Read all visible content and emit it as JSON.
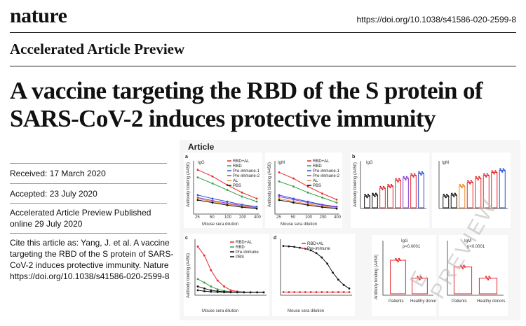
{
  "header": {
    "journal": "nature",
    "doi": "https://doi.org/10.1038/s41586-020-2599-8",
    "section": "Accelerated Article Preview"
  },
  "title": "A vaccine targeting the RBD of the S protein of SARS-CoV-2 induces protective immunity",
  "meta": {
    "received": "Received: 17 March 2020",
    "accepted": "Accepted: 23 July 2020",
    "published": "Accelerated Article Preview Published online 29 July 2020",
    "cite": "Cite this article as: Yang, J. et al. A vaccine targeting the RBD of the S protein of SARS-CoV-2 induces protective immunity. Nature https://doi.org/10.1038/s41586-020-2599-8"
  },
  "figure": {
    "label": "Article",
    "watermark": "E PREVIEW",
    "panels": {
      "a_igg": {
        "panel": "a",
        "title": "IgG",
        "ylabel": "Antibody binding (A450)",
        "xlabel": "Mouse sera dilution",
        "x_ticks": [
          "25",
          "50",
          "100",
          "200",
          "400"
        ]
      },
      "a_igm": {
        "panel": "",
        "title": "IgM",
        "ylabel": "Antibody binding (A450)",
        "xlabel": "Mouse sera dilution",
        "x_ticks": [
          "25",
          "50",
          "100",
          "200",
          "400"
        ]
      },
      "b_igg": {
        "panel": "b",
        "title": "IgG",
        "ylabel": "Antibody binding (A450)"
      },
      "b_igm": {
        "panel": "",
        "title": "IgM",
        "ylabel": ""
      },
      "c": {
        "panel": "c",
        "ylabel": "Antibody binding (A450)",
        "xlabel": "Mouse sera dilution"
      },
      "d": {
        "panel": "d",
        "xlabel": "Mouse sera dilution"
      },
      "e_igg": {
        "panel": "",
        "title": "IgG",
        "ylabel": "Antibody binding (A450)",
        "categories": [
          "Patients",
          "Healthy donors"
        ],
        "sig": "p<0.0001"
      },
      "e_igm": {
        "panel": "",
        "title": "IgM",
        "categories": [
          "Patients",
          "Healthy donors"
        ],
        "sig": "p<0.0001"
      }
    },
    "legends": {
      "a": [
        "RBD+AL",
        "RBD",
        "Pre-immune-1",
        "Pre-immune-2",
        "AL",
        "PBS"
      ],
      "c": [
        "RBD+AL",
        "RBD",
        "Pre-immune",
        "PBS"
      ],
      "d": [
        "RBD+AL",
        "Pre-immune"
      ]
    },
    "colors": {
      "red": "#e3262b",
      "green": "#2ea043",
      "blue": "#2b4fd8",
      "purple": "#8a3bd0",
      "black": "#111111",
      "orange": "#f08a24"
    }
  },
  "chart_data": [
    {
      "type": "line",
      "panel": "a IgG",
      "x": [
        "25",
        "50",
        "100",
        "200",
        "400"
      ],
      "series": [
        {
          "name": "RBD+AL",
          "values": [
            0.85,
            0.72,
            0.55,
            0.4,
            0.28
          ]
        },
        {
          "name": "RBD",
          "values": [
            0.7,
            0.58,
            0.45,
            0.32,
            0.22
          ]
        },
        {
          "name": "Pre-immune-1",
          "values": [
            0.35,
            0.28,
            0.22,
            0.16,
            0.12
          ]
        },
        {
          "name": "Pre-immune-2",
          "values": [
            0.3,
            0.24,
            0.19,
            0.14,
            0.1
          ]
        },
        {
          "name": "AL",
          "values": [
            0.28,
            0.22,
            0.17,
            0.13,
            0.09
          ]
        },
        {
          "name": "PBS",
          "values": [
            0.25,
            0.2,
            0.15,
            0.11,
            0.08
          ]
        }
      ]
    },
    {
      "type": "line",
      "panel": "a IgM",
      "x": [
        "25",
        "50",
        "100",
        "200",
        "400"
      ],
      "series": [
        {
          "name": "RBD+AL",
          "values": [
            0.8,
            0.68,
            0.52,
            0.38,
            0.26
          ]
        },
        {
          "name": "RBD",
          "values": [
            0.62,
            0.52,
            0.4,
            0.3,
            0.2
          ]
        },
        {
          "name": "Pre-immune-1",
          "values": [
            0.35,
            0.28,
            0.22,
            0.16,
            0.12
          ]
        },
        {
          "name": "Pre-immune-2",
          "values": [
            0.32,
            0.26,
            0.2,
            0.15,
            0.11
          ]
        },
        {
          "name": "AL",
          "values": [
            0.28,
            0.22,
            0.17,
            0.13,
            0.09
          ]
        },
        {
          "name": "PBS",
          "values": [
            0.25,
            0.2,
            0.15,
            0.11,
            0.08
          ]
        }
      ]
    },
    {
      "type": "bar",
      "panel": "b IgG",
      "values": [
        0.12,
        0.13,
        0.2,
        0.22,
        0.28,
        0.3,
        0.33,
        0.35
      ]
    },
    {
      "type": "bar",
      "panel": "b IgM",
      "values": [
        0.12,
        0.13,
        0.22,
        0.26,
        0.3,
        0.33,
        0.36,
        0.38
      ]
    },
    {
      "type": "line",
      "panel": "c",
      "series": [
        {
          "name": "RBD+AL",
          "values": [
            1.6,
            1.3,
            0.8,
            0.45,
            0.25,
            0.12,
            0.08,
            0.06,
            0.05,
            0.05,
            0.05
          ]
        },
        {
          "name": "RBD",
          "values": [
            0.5,
            0.38,
            0.25,
            0.15,
            0.1,
            0.07,
            0.06,
            0.05,
            0.05,
            0.05,
            0.05
          ]
        },
        {
          "name": "Pre-immune",
          "values": [
            0.25,
            0.18,
            0.12,
            0.09,
            0.07,
            0.06,
            0.05,
            0.05,
            0.05,
            0.05,
            0.05
          ]
        },
        {
          "name": "PBS",
          "values": [
            0.12,
            0.09,
            0.07,
            0.06,
            0.05,
            0.05,
            0.05,
            0.05,
            0.05,
            0.05,
            0.05
          ]
        }
      ]
    },
    {
      "type": "line",
      "panel": "d",
      "series": [
        {
          "name": "RBD+AL",
          "values": [
            2.7,
            2.68,
            2.65,
            2.6,
            2.55,
            2.45,
            2.3,
            2.05,
            1.7,
            1.2,
            0.8,
            0.5,
            0.3
          ]
        },
        {
          "name": "Pre-immune",
          "values": [
            0.1,
            0.1,
            0.1,
            0.1,
            0.1,
            0.1,
            0.1,
            0.1,
            0.1,
            0.1,
            0.1,
            0.1,
            0.1
          ]
        }
      ]
    },
    {
      "type": "bar",
      "panel": "e IgG",
      "categories": [
        "Patients",
        "Healthy donors"
      ],
      "values": [
        0.75,
        0.35
      ]
    },
    {
      "type": "bar",
      "panel": "e IgM",
      "categories": [
        "Patients",
        "Healthy donors"
      ],
      "values": [
        0.6,
        0.35
      ]
    }
  ]
}
